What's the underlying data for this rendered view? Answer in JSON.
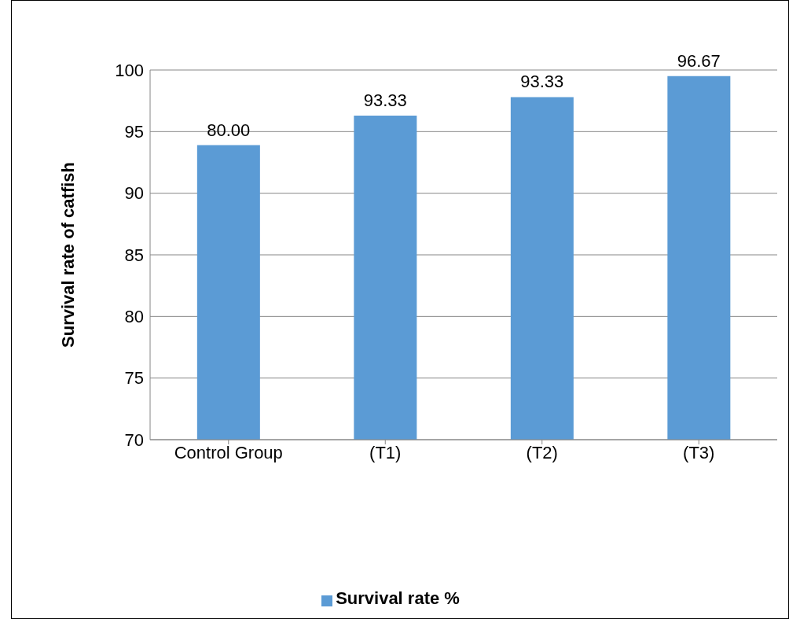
{
  "chart_data": {
    "type": "bar",
    "ylabel": "Survival rate of catfish",
    "categories": [
      "Control Group",
      "(T1)",
      "(T2)",
      "(T3)"
    ],
    "series": [
      {
        "name": "Survival rate %",
        "color": "#5b9bd5",
        "values": [
          93.9,
          96.3,
          97.8,
          99.5
        ]
      }
    ],
    "annotations": [
      {
        "text": "80.00",
        "x": "Control Group",
        "y": 93.9
      },
      {
        "text": "93.33",
        "x": "(T1)",
        "y": 96.3
      },
      {
        "text": "93.33",
        "x": "(T2)",
        "y": 97.8
      },
      {
        "text": "96.67",
        "x": "(T3)",
        "y": 99.5
      }
    ],
    "ylim": [
      70,
      100
    ],
    "yticks": [
      70,
      75,
      80,
      85,
      90,
      95,
      100
    ],
    "grid": "y",
    "legend": "bottom"
  }
}
